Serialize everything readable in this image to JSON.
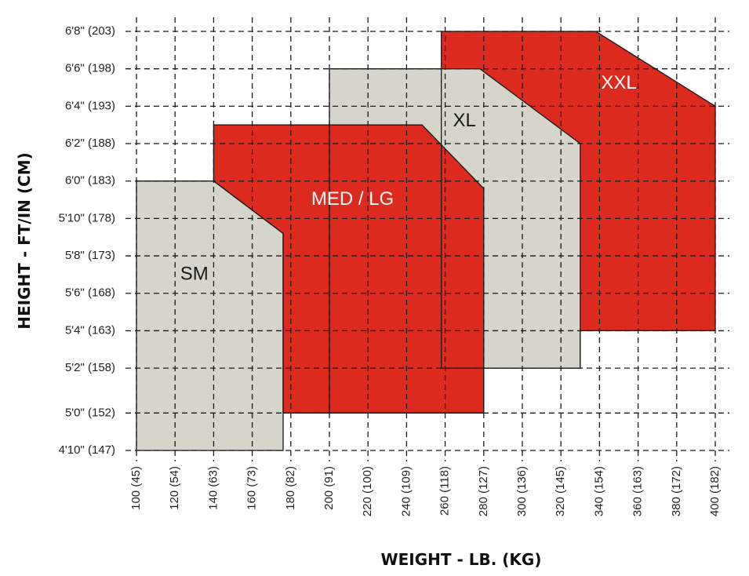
{
  "colors": {
    "red": "#dc2a1e",
    "gray": "#d6d5cb",
    "outline": "#1a1a1a",
    "grid": "#1a1a1a",
    "label_on_red": "#ffffff",
    "label_on_gray": "#1a1a1a"
  },
  "chart_data": {
    "type": "area",
    "title": "",
    "xlabel": "WEIGHT - LB. (KG)",
    "ylabel": "HEIGHT - FT/IN (CM)",
    "xlim": [
      100,
      400
    ],
    "ylim": [
      147,
      203
    ],
    "grid": true,
    "x_ticks": [
      {
        "value": 100,
        "label": "100 (45)"
      },
      {
        "value": 120,
        "label": "120 (54)"
      },
      {
        "value": 140,
        "label": "140 (63)"
      },
      {
        "value": 160,
        "label": "160 (73)"
      },
      {
        "value": 180,
        "label": "180 (82)"
      },
      {
        "value": 200,
        "label": "200 (91)"
      },
      {
        "value": 220,
        "label": "220 (100)"
      },
      {
        "value": 240,
        "label": "240 (109)"
      },
      {
        "value": 260,
        "label": "260 (118)"
      },
      {
        "value": 280,
        "label": "280 (127)"
      },
      {
        "value": 300,
        "label": "300 (136)"
      },
      {
        "value": 320,
        "label": "320 (145)"
      },
      {
        "value": 340,
        "label": "340 (154)"
      },
      {
        "value": 360,
        "label": "360 (163)"
      },
      {
        "value": 380,
        "label": "380 (172)"
      },
      {
        "value": 400,
        "label": "400 (182)"
      }
    ],
    "y_ticks": [
      {
        "value": 147,
        "label": "4'10\" (147)"
      },
      {
        "value": 152,
        "label": "5'0\" (152)"
      },
      {
        "value": 158,
        "label": "5'2\" (158)"
      },
      {
        "value": 163,
        "label": "5'4\" (163)"
      },
      {
        "value": 168,
        "label": "5'6\" (168)"
      },
      {
        "value": 173,
        "label": "5'8\" (173)"
      },
      {
        "value": 178,
        "label": "5'10\" (178)"
      },
      {
        "value": 183,
        "label": "6'0\" (183)"
      },
      {
        "value": 188,
        "label": "6'2\" (188)"
      },
      {
        "value": 193,
        "label": "6'4\" (193)"
      },
      {
        "value": 198,
        "label": "6'6\" (198)"
      },
      {
        "value": 203,
        "label": "6'8\" (203)"
      }
    ],
    "regions": [
      {
        "name": "XXL",
        "color": "red",
        "label_pos": [
          350,
          196
        ],
        "polygon": [
          [
            258,
            203
          ],
          [
            338,
            203
          ],
          [
            400,
            193
          ],
          [
            400,
            163
          ],
          [
            330,
            163
          ],
          [
            330,
            158
          ],
          [
            258,
            158
          ]
        ]
      },
      {
        "name": "XL",
        "color": "gray",
        "label_pos": [
          270,
          191
        ],
        "polygon": [
          [
            200,
            198
          ],
          [
            278,
            198
          ],
          [
            330,
            188
          ],
          [
            330,
            158
          ],
          [
            280,
            158
          ],
          [
            280,
            152
          ],
          [
            200,
            152
          ]
        ]
      },
      {
        "name": "MED / LG",
        "color": "red",
        "label_pos": [
          212,
          180.5
        ],
        "polygon": [
          [
            140,
            190.5
          ],
          [
            248,
            190.5
          ],
          [
            280,
            182
          ],
          [
            280,
            152
          ],
          [
            176,
            152
          ],
          [
            176,
            176
          ],
          [
            140,
            183
          ]
        ]
      },
      {
        "name": "SM",
        "color": "gray",
        "label_pos": [
          130,
          170.5
        ],
        "polygon": [
          [
            100,
            183
          ],
          [
            140,
            183
          ],
          [
            176,
            176
          ],
          [
            176,
            147
          ],
          [
            100,
            147
          ]
        ]
      }
    ]
  }
}
